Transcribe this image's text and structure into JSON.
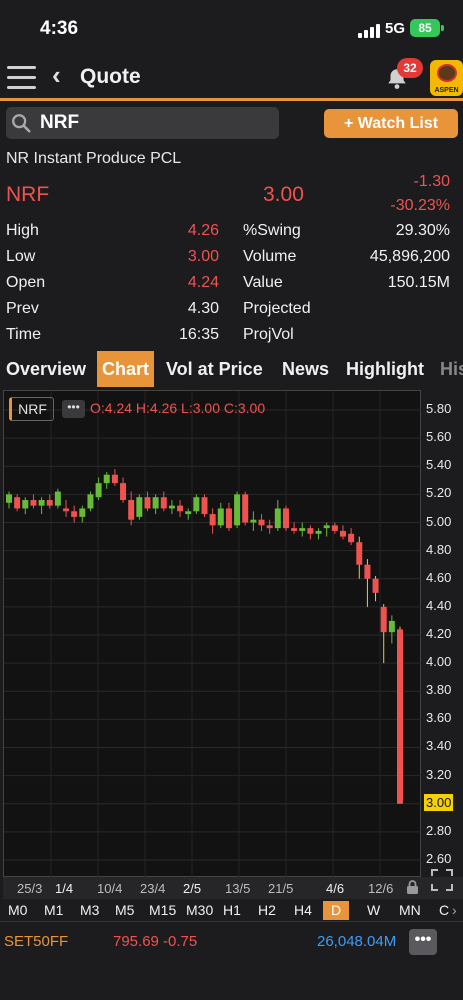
{
  "status_bar": {
    "time": "4:36",
    "network": "5G",
    "battery": "85"
  },
  "header": {
    "back_label": "Quote",
    "notification_count": "32",
    "logo_text": "ASPEN"
  },
  "search": {
    "value": "NRF",
    "watch_list_label": "+ Watch List"
  },
  "quote": {
    "company_name": "NR Instant Produce PCL",
    "symbol": "NRF",
    "last": "3.00",
    "change": "-1.30",
    "change_pct": "-30.23%",
    "stats_left": [
      {
        "label": "High",
        "value": "4.26"
      },
      {
        "label": "Low",
        "value": "3.00"
      },
      {
        "label": "Open",
        "value": "4.24"
      },
      {
        "label": "Prev",
        "value": "4.30"
      },
      {
        "label": "Time",
        "value": "16:35"
      }
    ],
    "stats_right": [
      {
        "label": "%Swing",
        "value": "29.30%"
      },
      {
        "label": "Volume",
        "value": "45,896,200"
      },
      {
        "label": "Value",
        "value": "150.15M"
      },
      {
        "label": "Projected",
        "value": ""
      },
      {
        "label": "ProjVol",
        "value": ""
      }
    ]
  },
  "tabs": [
    "Overview",
    "Chart",
    "Vol at Price",
    "News",
    "Highlight",
    "His"
  ],
  "active_tab": "Chart",
  "chart_header": {
    "symbol_tag": "NRF",
    "more": "•••",
    "ohlc": "O:4.24 H:4.26 L:3.00 C:3.00"
  },
  "chart_data": {
    "type": "candlestick",
    "symbol": "NRF",
    "up_color": "#66bb3a",
    "down_color": "#ef5350",
    "ylim": [
      2.55,
      5.85
    ],
    "y_ticks": [
      "5.80",
      "5.60",
      "5.40",
      "5.20",
      "5.00",
      "4.80",
      "4.60",
      "4.40",
      "4.20",
      "4.00",
      "3.80",
      "3.60",
      "3.40",
      "3.20",
      "3.00",
      "2.80",
      "2.60"
    ],
    "current_price_label": "3.00",
    "x_ticks": [
      "25/3",
      "1/4",
      "10/4",
      "23/4",
      "2/5",
      "13/5",
      "21/5",
      "4/6",
      "12/6"
    ],
    "candles": [
      [
        5.14,
        5.22,
        5.1,
        5.2
      ],
      [
        5.18,
        5.2,
        5.08,
        5.1
      ],
      [
        5.1,
        5.18,
        5.06,
        5.16
      ],
      [
        5.16,
        5.2,
        5.1,
        5.12
      ],
      [
        5.12,
        5.18,
        5.06,
        5.16
      ],
      [
        5.16,
        5.2,
        5.1,
        5.12
      ],
      [
        5.12,
        5.24,
        5.1,
        5.22
      ],
      [
        5.1,
        5.16,
        5.04,
        5.08
      ],
      [
        5.08,
        5.12,
        5.0,
        5.04
      ],
      [
        5.04,
        5.12,
        5.0,
        5.1
      ],
      [
        5.1,
        5.22,
        5.08,
        5.2
      ],
      [
        5.18,
        5.32,
        5.16,
        5.28
      ],
      [
        5.28,
        5.36,
        5.24,
        5.34
      ],
      [
        5.34,
        5.38,
        5.26,
        5.28
      ],
      [
        5.28,
        5.32,
        5.14,
        5.16
      ],
      [
        5.16,
        5.22,
        4.98,
        5.02
      ],
      [
        5.04,
        5.2,
        5.02,
        5.18
      ],
      [
        5.18,
        5.22,
        5.08,
        5.1
      ],
      [
        5.1,
        5.2,
        5.06,
        5.18
      ],
      [
        5.18,
        5.22,
        5.08,
        5.1
      ],
      [
        5.1,
        5.16,
        5.06,
        5.12
      ],
      [
        5.12,
        5.16,
        5.04,
        5.08
      ],
      [
        5.06,
        5.1,
        5.02,
        5.08
      ],
      [
        5.08,
        5.2,
        5.06,
        5.18
      ],
      [
        5.18,
        5.2,
        5.04,
        5.06
      ],
      [
        5.06,
        5.1,
        4.92,
        4.98
      ],
      [
        4.98,
        5.14,
        4.96,
        5.1
      ],
      [
        5.1,
        5.14,
        4.94,
        4.96
      ],
      [
        4.98,
        5.22,
        4.96,
        5.2
      ],
      [
        5.2,
        5.22,
        4.98,
        5.0
      ],
      [
        5.0,
        5.08,
        4.94,
        5.02
      ],
      [
        5.02,
        5.06,
        4.94,
        4.98
      ],
      [
        4.98,
        5.02,
        4.92,
        4.96
      ],
      [
        4.96,
        5.16,
        4.94,
        5.1
      ],
      [
        5.1,
        5.12,
        4.94,
        4.96
      ],
      [
        4.96,
        5.0,
        4.92,
        4.94
      ],
      [
        4.94,
        5.0,
        4.9,
        4.96
      ],
      [
        4.96,
        4.98,
        4.88,
        4.92
      ],
      [
        4.92,
        4.96,
        4.88,
        4.94
      ],
      [
        4.96,
        5.0,
        4.9,
        4.98
      ],
      [
        4.98,
        5.0,
        4.92,
        4.94
      ],
      [
        4.94,
        4.98,
        4.88,
        4.9
      ],
      [
        4.92,
        4.96,
        4.84,
        4.86
      ],
      [
        4.86,
        4.9,
        4.6,
        4.7
      ],
      [
        4.7,
        4.74,
        4.4,
        4.6
      ],
      [
        4.6,
        4.62,
        4.44,
        4.5
      ],
      [
        4.4,
        4.42,
        4.0,
        4.22
      ],
      [
        4.22,
        4.34,
        4.14,
        4.3
      ],
      [
        4.24,
        4.26,
        3.0,
        3.0
      ]
    ]
  },
  "periods": [
    "M0",
    "M1",
    "M3",
    "M5",
    "M15",
    "M30",
    "H1",
    "H2",
    "H4",
    "D",
    "W",
    "MN",
    "C"
  ],
  "active_period": "D",
  "ticker": {
    "index": "SET50FF",
    "value": "795.69 -0.75",
    "volume": "26,048.04M",
    "more": "•••"
  }
}
